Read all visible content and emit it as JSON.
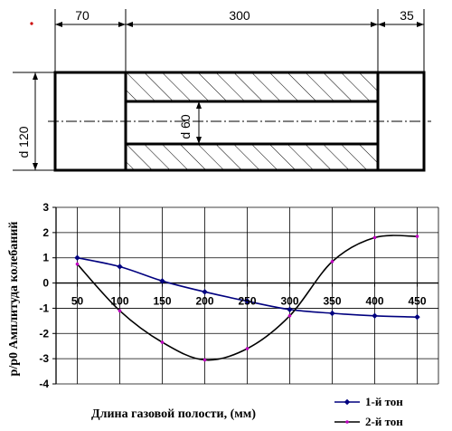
{
  "drawing": {
    "dim_left": "70",
    "dim_middle": "300",
    "dim_right": "35",
    "dim_outer_diameter": "d 120",
    "dim_inner_diameter": "d 60",
    "marker_color": "#cc0000"
  },
  "chart_data": {
    "type": "line",
    "title": "",
    "xlabel": "Длина газовой полости, (мм)",
    "ylabel": "p/p0 Амплитуда колебаний",
    "xlim": [
      25,
      475
    ],
    "ylim": [
      -4,
      3
    ],
    "x_ticks": [
      50,
      100,
      150,
      200,
      250,
      300,
      350,
      400,
      450
    ],
    "y_ticks": [
      3,
      2,
      1,
      0,
      -1,
      -2,
      -3,
      -4
    ],
    "grid": true,
    "legend_position": "bottom-right",
    "series": [
      {
        "name": "1-й тон",
        "color": "#00007f",
        "marker": "diamond",
        "x": [
          50,
          100,
          150,
          200,
          250,
          300,
          350,
          400,
          450
        ],
        "y": [
          1.0,
          0.65,
          0.08,
          -0.35,
          -0.72,
          -1.05,
          -1.2,
          -1.3,
          -1.35
        ]
      },
      {
        "name": "2-й тон",
        "color": "#000000",
        "marker_color": "#c000c0",
        "marker": "dot",
        "x": [
          50,
          100,
          150,
          200,
          250,
          300,
          350,
          400,
          450
        ],
        "y": [
          0.75,
          -1.1,
          -2.35,
          -3.05,
          -2.6,
          -1.3,
          0.85,
          1.8,
          1.85
        ]
      }
    ]
  }
}
